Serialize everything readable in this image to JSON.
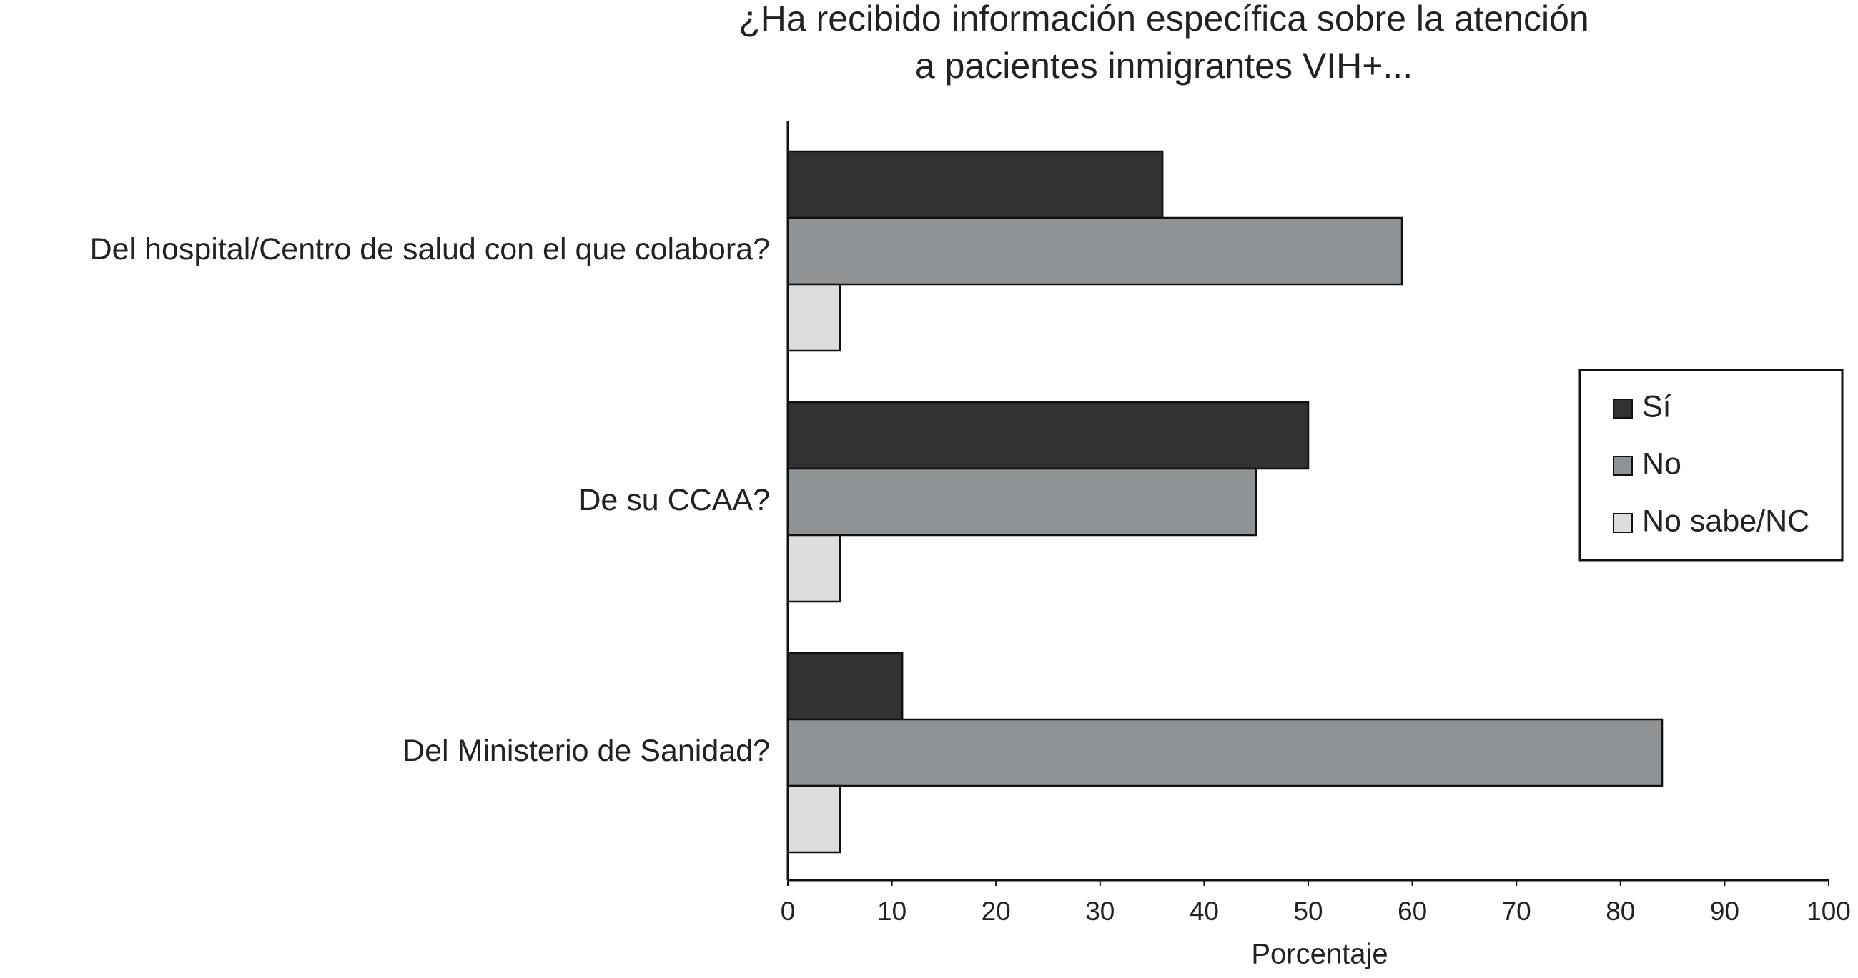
{
  "chart_data": {
    "type": "bar",
    "orientation": "horizontal",
    "title": [
      "¿Ha recibido información específica sobre la atención",
      "a pacientes inmigrantes VIH+..."
    ],
    "categories": [
      "Del hospital/Centro de salud con el que colabora?",
      "De su CCAA?",
      "Del Ministerio de Sanidad?"
    ],
    "series": [
      {
        "name": "Sí",
        "color": "#333133",
        "values": [
          36,
          50,
          11
        ]
      },
      {
        "name": "No",
        "color": "#909395",
        "values": [
          59,
          45,
          84
        ]
      },
      {
        "name": "No sabe/NC",
        "color": "#dcdddf",
        "values": [
          5,
          5,
          5
        ]
      }
    ],
    "x_label": "Porcentaje",
    "xlim": [
      0,
      100
    ],
    "xticks": [
      0,
      10,
      20,
      30,
      40,
      50,
      60,
      70,
      80,
      90,
      100
    ],
    "grid": false,
    "legend": "right"
  }
}
